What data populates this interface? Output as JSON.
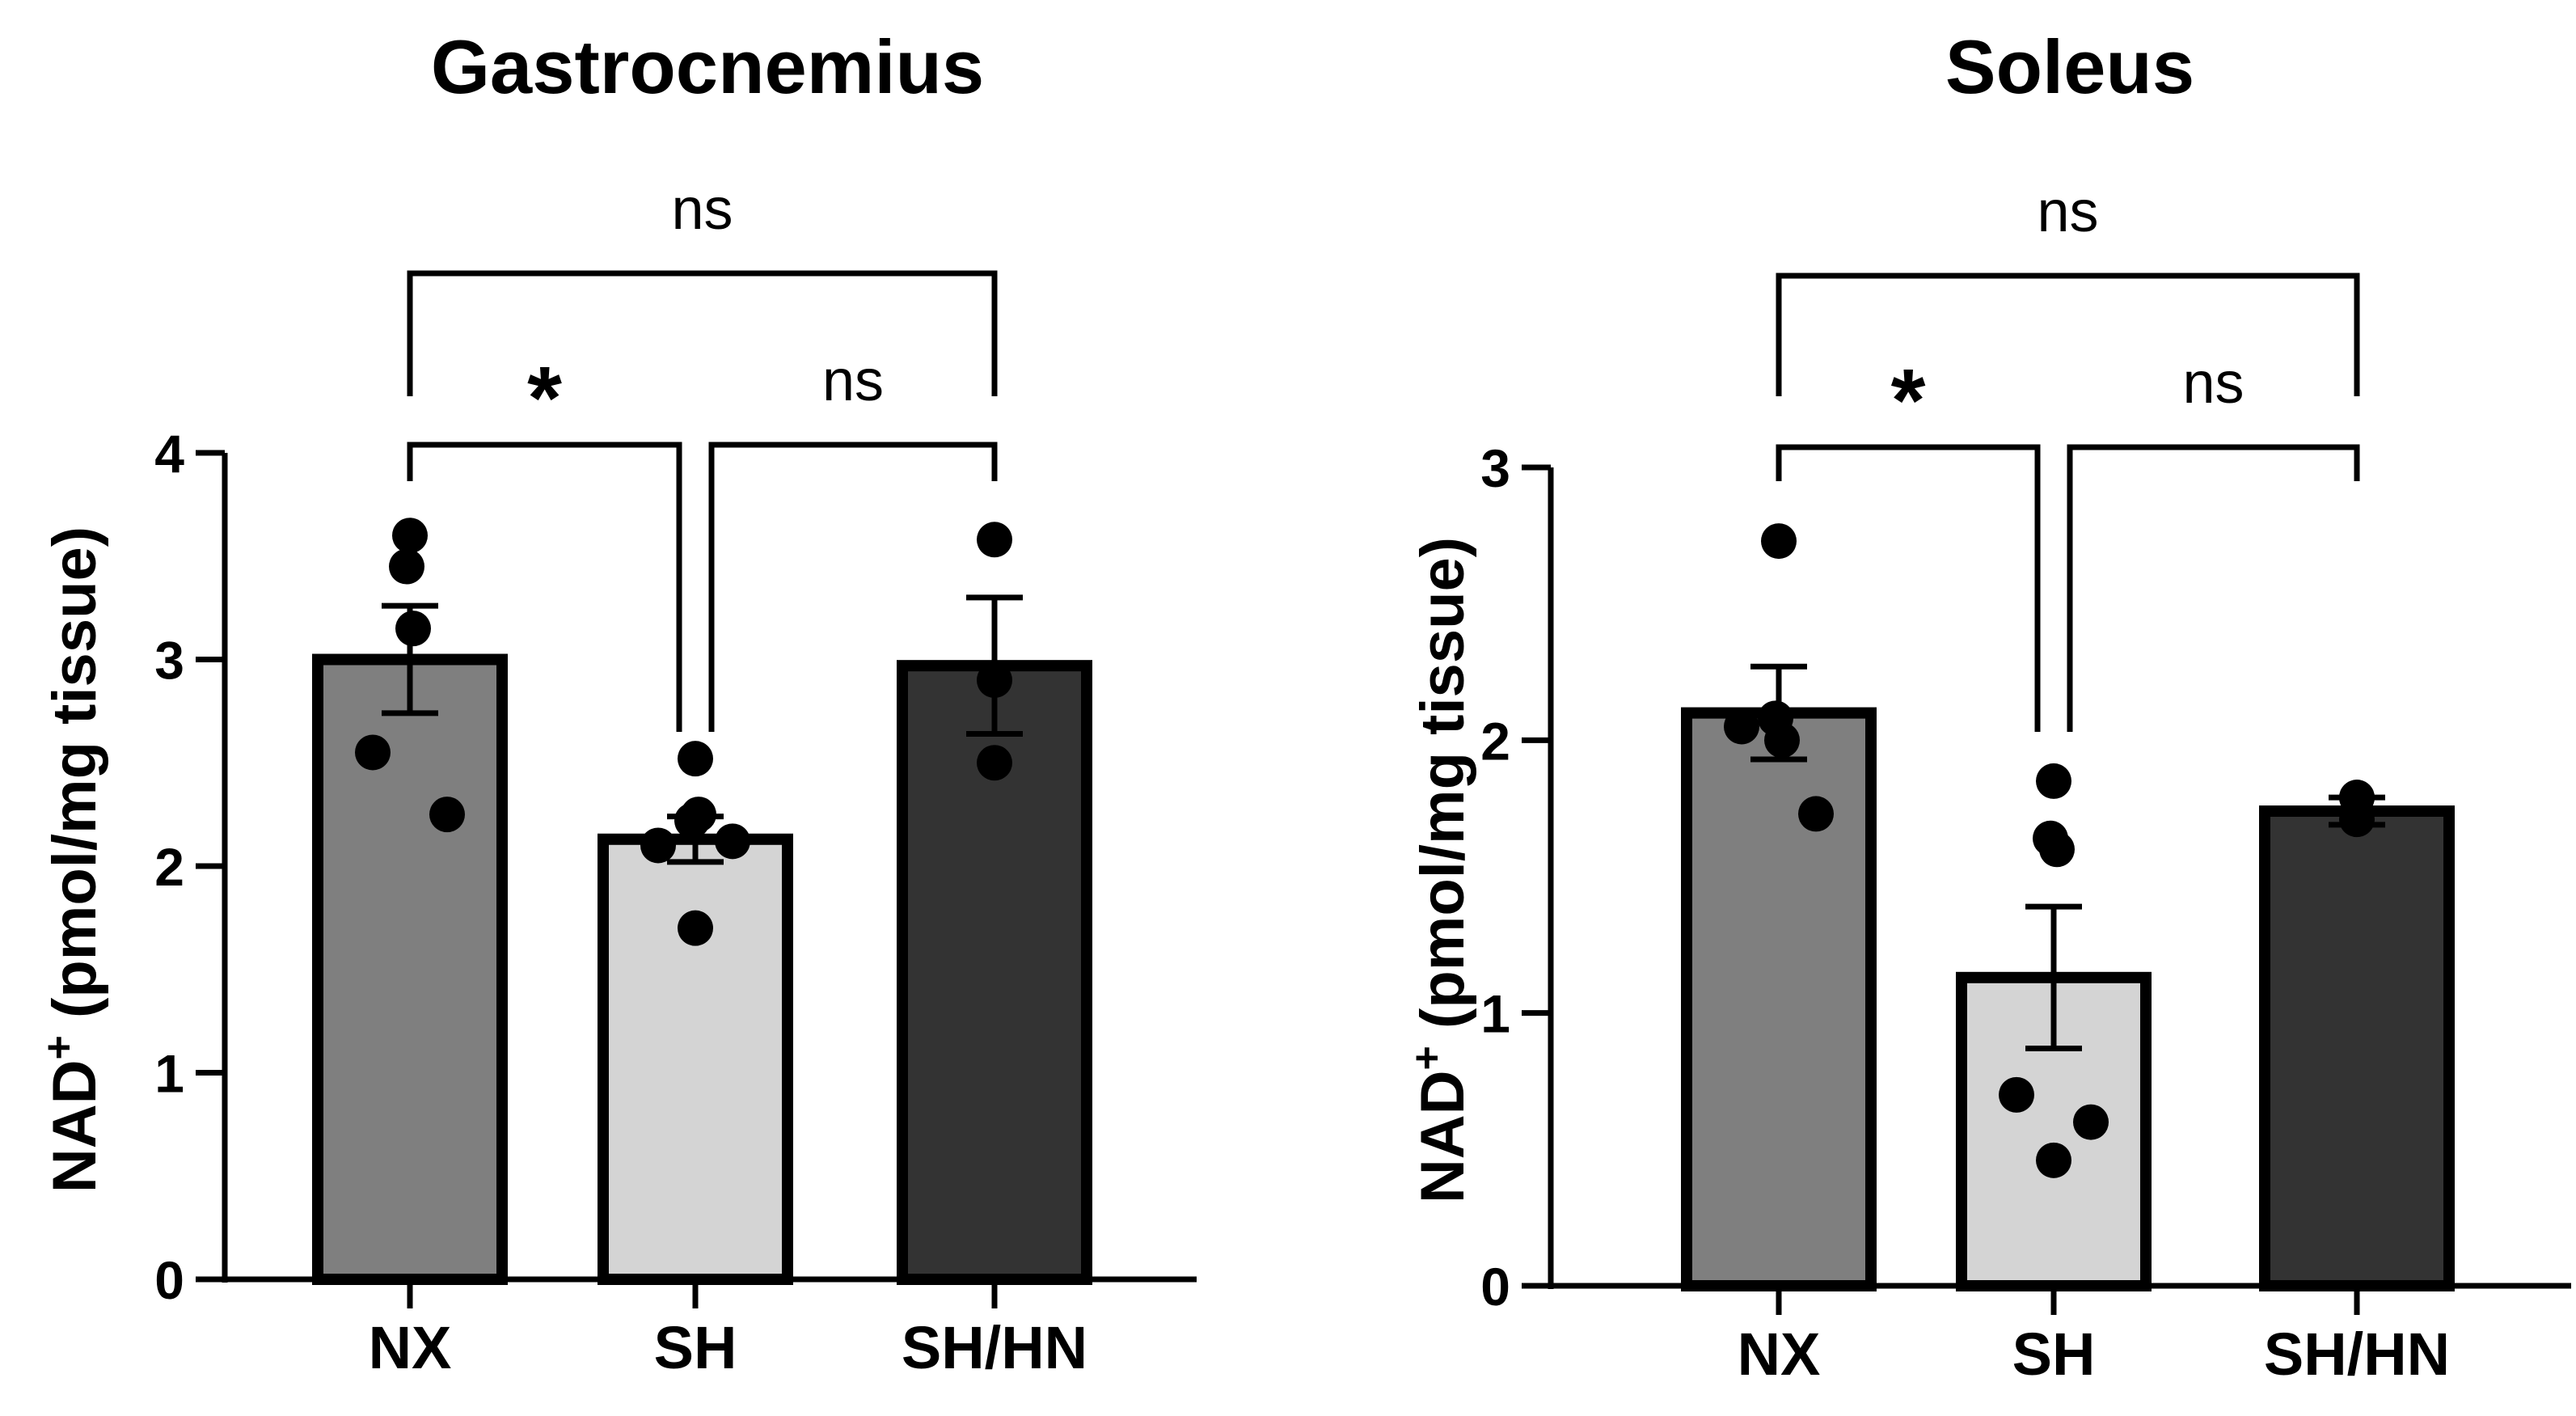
{
  "chart_data": [
    {
      "type": "bar",
      "title": "Gastrocnemius",
      "ylabel": "NAD⁺ (pmol/mg tissue)",
      "ylabel_main": "NAD",
      "ylabel_sup": "+",
      "ylabel_rest": " (pmol/mg tissue)",
      "categories": [
        "NX",
        "SH",
        "SH/HN"
      ],
      "values": [
        3.0,
        2.13,
        2.97
      ],
      "sem": [
        0.26,
        0.11,
        0.33
      ],
      "points": [
        [
          3.6,
          3.45,
          3.15,
          2.55,
          2.25
        ],
        [
          2.52,
          2.22,
          2.25,
          2.1,
          2.12,
          1.7
        ],
        [
          3.58,
          2.9,
          2.5
        ]
      ],
      "bar_colors": [
        "#7f7f7f",
        "#d4d4d4",
        "#333333"
      ],
      "ylim": [
        0,
        4
      ],
      "yticks": [
        "0",
        "1",
        "2",
        "3",
        "4"
      ],
      "grid": false,
      "significance": [
        {
          "from": 0,
          "to": 2,
          "label": "ns",
          "level": 2
        },
        {
          "from": 0,
          "to": 1,
          "label": "*",
          "level": 1
        },
        {
          "from": 1,
          "to": 2,
          "label": "ns",
          "level": 1
        }
      ]
    },
    {
      "type": "bar",
      "title": "Soleus",
      "ylabel": "NAD⁺ (pmol/mg tissue)",
      "ylabel_main": "NAD",
      "ylabel_sup": "+",
      "ylabel_rest": " (pmol/mg tissue)",
      "categories": [
        "NX",
        "SH",
        "SH/HN"
      ],
      "values": [
        2.1,
        1.13,
        1.74
      ],
      "sem": [
        0.17,
        0.26,
        0.05
      ],
      "points": [
        [
          2.73,
          2.08,
          2.0,
          2.05,
          1.73
        ],
        [
          1.85,
          1.64,
          1.6,
          0.7,
          0.6,
          0.46
        ],
        [
          1.79,
          1.79,
          1.71
        ]
      ],
      "bar_colors": [
        "#7f7f7f",
        "#d4d4d4",
        "#333333"
      ],
      "ylim": [
        0,
        3
      ],
      "yticks": [
        "0",
        "1",
        "2",
        "3"
      ],
      "grid": false,
      "significance": [
        {
          "from": 0,
          "to": 2,
          "label": "ns",
          "level": 2
        },
        {
          "from": 0,
          "to": 1,
          "label": "*",
          "level": 1
        },
        {
          "from": 1,
          "to": 2,
          "label": "ns",
          "level": 1
        }
      ]
    }
  ]
}
